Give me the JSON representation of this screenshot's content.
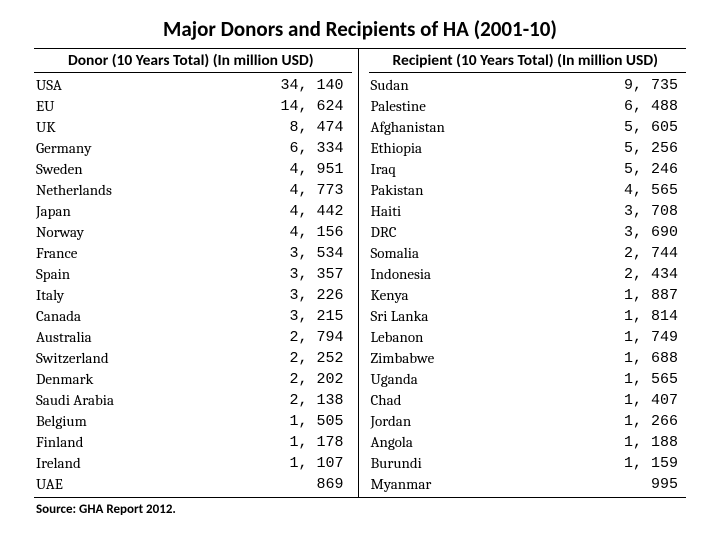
{
  "title": "Major Donors and Recipients of HA (2001-10)",
  "source": "Source: GHA Report 2012.",
  "table": {
    "type": "table",
    "text_color": "#000000",
    "rule_color": "#000000",
    "background_color": "#ffffff",
    "name_font": "Cambria, Georgia, serif",
    "value_font": "Courier New, monospace",
    "header_fontsize": 15.5,
    "body_fontsize": 15,
    "title_fontsize": 21,
    "columns": [
      {
        "header": "Donor (10 Years Total) (In million USD)",
        "rows": [
          {
            "name": "USA",
            "value": "34, 140"
          },
          {
            "name": "EU",
            "value": "14, 624"
          },
          {
            "name": "UK",
            "value": " 8, 474"
          },
          {
            "name": "Germany",
            "value": " 6, 334"
          },
          {
            "name": "Sweden",
            "value": " 4, 951"
          },
          {
            "name": "Netherlands",
            "value": " 4, 773"
          },
          {
            "name": "Japan",
            "value": " 4, 442"
          },
          {
            "name": "Norway",
            "value": " 4, 156"
          },
          {
            "name": "France",
            "value": " 3, 534"
          },
          {
            "name": "Spain",
            "value": " 3, 357"
          },
          {
            "name": "Italy",
            "value": " 3, 226"
          },
          {
            "name": "Canada",
            "value": " 3, 215"
          },
          {
            "name": "Australia",
            "value": " 2, 794"
          },
          {
            "name": "Switzerland",
            "value": " 2, 252"
          },
          {
            "name": "Denmark",
            "value": " 2, 202"
          },
          {
            "name": "Saudi Arabia",
            "value": " 2, 138"
          },
          {
            "name": "Belgium",
            "value": " 1, 505"
          },
          {
            "name": "Finland",
            "value": " 1, 178"
          },
          {
            "name": "Ireland",
            "value": " 1, 107"
          },
          {
            "name": "UAE",
            "value": "   869"
          }
        ]
      },
      {
        "header": "Recipient (10 Years Total) (In million USD)",
        "rows": [
          {
            "name": "Sudan",
            "value": "9, 735"
          },
          {
            "name": "Palestine",
            "value": "6, 488"
          },
          {
            "name": "Afghanistan",
            "value": "5, 605"
          },
          {
            "name": "Ethiopia",
            "value": "5, 256"
          },
          {
            "name": "Iraq",
            "value": "5, 246"
          },
          {
            "name": "Pakistan",
            "value": "4, 565"
          },
          {
            "name": "Haiti",
            "value": "3, 708"
          },
          {
            "name": "DRC",
            "value": "3, 690"
          },
          {
            "name": "Somalia",
            "value": "2, 744"
          },
          {
            "name": "Indonesia",
            "value": "2, 434"
          },
          {
            "name": "Kenya",
            "value": "1, 887"
          },
          {
            "name": "Sri Lanka",
            "value": "1, 814"
          },
          {
            "name": "Lebanon",
            "value": "1, 749"
          },
          {
            "name": "Zimbabwe",
            "value": "1, 688"
          },
          {
            "name": "Uganda",
            "value": "1, 565"
          },
          {
            "name": "Chad",
            "value": "1, 407"
          },
          {
            "name": "Jordan",
            "value": "1, 266"
          },
          {
            "name": "Angola",
            "value": "1, 188"
          },
          {
            "name": "Burundi",
            "value": "1, 159"
          },
          {
            "name": "Myanmar",
            "value": "  995"
          }
        ]
      }
    ]
  }
}
